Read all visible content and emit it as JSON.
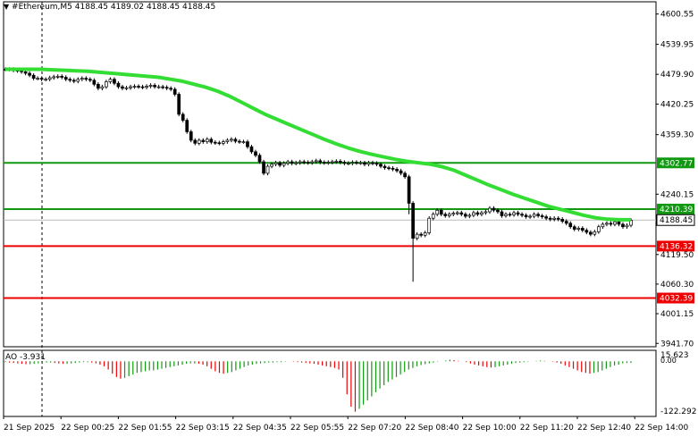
{
  "header": {
    "symbol": "#Ethereum,M5",
    "ohlc": "4188.45 4189.02 4188.45 4188.45",
    "menu_icon": "triangle-down-icon"
  },
  "indicator": {
    "label": "AO -3.931",
    "top_value": "15.623",
    "mid_value": "0.00",
    "bottom_value": "-122.292"
  },
  "colors": {
    "candle": "#000000",
    "moving_average": "#33dd33",
    "support_line": "#ee0000",
    "resistance_line": "#119911",
    "price_tag_current": "#ffffff",
    "ao_up": "#119911",
    "ao_down": "#ee0000"
  },
  "chart_data": {
    "type": "candlestick",
    "price_axis": {
      "ticks": [
        {
          "value": 4600.55,
          "label": "4600.55"
        },
        {
          "value": 4539.95,
          "label": "4539.95"
        },
        {
          "value": 4479.9,
          "label": "4479.90"
        },
        {
          "value": 4420.25,
          "label": "4420.25"
        },
        {
          "value": 4359.3,
          "label": "4359.30"
        },
        {
          "value": 4240.15,
          "label": "4240.15"
        },
        {
          "value": 4119.5,
          "label": "4119.50"
        },
        {
          "value": 4060.3,
          "label": "4060.30"
        },
        {
          "value": 4001.15,
          "label": "4001.15"
        },
        {
          "value": 3941.7,
          "label": "3941.70"
        }
      ],
      "range": [
        3935,
        4625
      ]
    },
    "time_axis": {
      "labels": [
        "21 Sep 2025",
        "22 Sep 00:25",
        "22 Sep 01:55",
        "22 Sep 03:15",
        "22 Sep 04:35",
        "22 Sep 05:55",
        "22 Sep 07:20",
        "22 Sep 08:40",
        "22 Sep 10:00",
        "22 Sep 11:20",
        "22 Sep 12:40",
        "22 Sep 14:00"
      ]
    },
    "horizontal_levels": [
      {
        "value": 4302.77,
        "label": "4302.77",
        "kind": "resistance",
        "color": "#119911"
      },
      {
        "value": 4210.39,
        "label": "4210.39",
        "kind": "resistance",
        "color": "#119911"
      },
      {
        "value": 4136.32,
        "label": "4136.32",
        "kind": "support",
        "color": "#ee0000"
      },
      {
        "value": 4032.39,
        "label": "4032.39",
        "kind": "support",
        "color": "#ee0000"
      }
    ],
    "current_price": {
      "value": 4188.45,
      "label": "4188.45"
    },
    "close_series": [
      4490,
      4490,
      4488,
      4487,
      4485,
      4482,
      4478,
      4472,
      4472,
      4470,
      4470,
      4473,
      4475,
      4476,
      4474,
      4470,
      4468,
      4466,
      4470,
      4472,
      4470,
      4468,
      4460,
      4452,
      4455,
      4465,
      4470,
      4462,
      4455,
      4452,
      4453,
      4455,
      4456,
      4455,
      4454,
      4456,
      4458,
      4455,
      4455,
      4454,
      4452,
      4450,
      4440,
      4400,
      4388,
      4365,
      4348,
      4342,
      4348,
      4345,
      4350,
      4344,
      4343,
      4342,
      4345,
      4348,
      4350,
      4346,
      4345,
      4345,
      4335,
      4325,
      4318,
      4305,
      4282,
      4296,
      4300,
      4303,
      4298,
      4302,
      4305,
      4302,
      4303,
      4305,
      4304,
      4303,
      4305,
      4307,
      4304,
      4303,
      4304,
      4305,
      4306,
      4304,
      4302,
      4302,
      4304,
      4303,
      4303,
      4300,
      4303,
      4302,
      4300,
      4296,
      4293,
      4292,
      4290,
      4287,
      4282,
      4275,
      4222,
      4152,
      4160,
      4158,
      4163,
      4192,
      4200,
      4208,
      4200,
      4197,
      4200,
      4202,
      4203,
      4200,
      4196,
      4198,
      4203,
      4200,
      4203,
      4205,
      4212,
      4208,
      4205,
      4197,
      4200,
      4199,
      4203,
      4200,
      4198,
      4195,
      4196,
      4200,
      4197,
      4195,
      4192,
      4190,
      4192,
      4190,
      4186,
      4182,
      4175,
      4170,
      4172,
      4168,
      4164,
      4160,
      4165,
      4175,
      4180,
      4182,
      4180,
      4185,
      4180,
      4175,
      4178,
      4188
    ],
    "moving_average_series": [
      4490,
      4490,
      4490,
      4490,
      4489,
      4488,
      4487,
      4486,
      4484,
      4482,
      4480,
      4478,
      4476,
      4474,
      4470,
      4466,
      4460,
      4454,
      4446,
      4436,
      4424,
      4412,
      4400,
      4390,
      4380,
      4370,
      4360,
      4350,
      4341,
      4333,
      4326,
      4320,
      4315,
      4310,
      4306,
      4303,
      4300,
      4295,
      4288,
      4278,
      4268,
      4258,
      4249,
      4240,
      4232,
      4224,
      4216,
      4210,
      4204,
      4198,
      4193,
      4190,
      4189,
      4189
    ],
    "ao_series": [
      -2,
      -3,
      -4,
      -5,
      -6,
      -7,
      -7,
      -6,
      -5,
      -4,
      -3,
      -3,
      -4,
      -5,
      -6,
      -6,
      -5,
      -4,
      -3,
      -2,
      -2,
      -3,
      -5,
      -8,
      -12,
      -20,
      -30,
      -38,
      -42,
      -40,
      -36,
      -32,
      -28,
      -26,
      -24,
      -22,
      -22,
      -20,
      -18,
      -16,
      -14,
      -12,
      -10,
      -8,
      -6,
      -5,
      -5,
      -6,
      -8,
      -12,
      -18,
      -24,
      -28,
      -30,
      -28,
      -26,
      -22,
      -18,
      -14,
      -10,
      -8,
      -6,
      -5,
      -4,
      -3,
      -3,
      -2,
      -2,
      -1,
      0,
      -1,
      -2,
      -3,
      -4,
      -5,
      -6,
      -8,
      -10,
      -12,
      -14,
      -16,
      -20,
      -40,
      -80,
      -110,
      -122,
      -115,
      -105,
      -95,
      -85,
      -75,
      -66,
      -58,
      -50,
      -44,
      -38,
      -32,
      -26,
      -20,
      -16,
      -12,
      -9,
      -7,
      -5,
      -3,
      -1,
      0,
      2,
      4,
      3,
      1,
      0,
      -2,
      -5,
      -8,
      -10,
      -12,
      -14,
      -15,
      -14,
      -12,
      -10,
      -8,
      -6,
      -4,
      -3,
      -2,
      -1,
      0,
      1,
      2,
      1,
      0,
      -1,
      -3,
      -6,
      -10,
      -14,
      -18,
      -22,
      -26,
      -28,
      -30,
      -28,
      -26,
      -22,
      -18,
      -14,
      -10,
      -8,
      -5,
      -4,
      -4
    ],
    "ao_range": [
      -125,
      18
    ]
  }
}
